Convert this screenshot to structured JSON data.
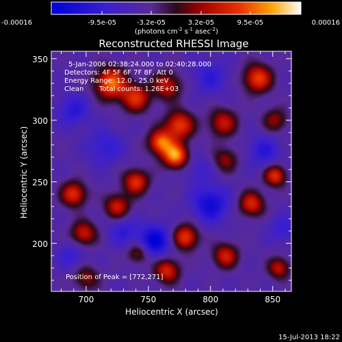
{
  "chart_data": {
    "type": "heatmap",
    "title": "Reconstructed RHESSI Image",
    "xlabel": "Heliocentric X (arcsec)",
    "ylabel": "Heliocentric Y (arcsec)",
    "xlim": [
      672,
      865
    ],
    "ylim": [
      161,
      356
    ],
    "xticks": [
      "700",
      "750",
      "800",
      "850"
    ],
    "xtick_values": [
      700,
      750,
      800,
      850
    ],
    "yticks": [
      "200",
      "250",
      "300",
      "350"
    ],
    "ytick_values": [
      200,
      250,
      300,
      350
    ],
    "colorbar": {
      "min": -0.00016,
      "max": 0.00016,
      "tick_labels": [
        "-0.00016",
        "-9.5e-05",
        "-3.2e-05",
        "3.2e-05",
        "9.5e-05",
        "0.00016"
      ],
      "tick_values": [
        -0.00016,
        -9.5e-05,
        -3.2e-05,
        3.2e-05,
        9.5e-05,
        0.00016
      ],
      "unit_prefix": "(photons cm",
      "unit_sup1": "-2",
      "unit_mid": " s",
      "unit_sup2": "-1",
      "unit_mid2": " asec",
      "unit_sup3": "-2",
      "unit_suffix": ")"
    },
    "annotations": {
      "time_range": "5-Jan-2006 02:38:24.000 to 02:40:28.000",
      "detectors": "Detectors: 4F 5F 6F 7F 8F, Att 0",
      "energy": "Energy Range: 12.0 - 25.0 keV",
      "clean": "Clean",
      "total_counts": "Total counts: 1.26E+03",
      "peak": "Position of Peak = [772,271]"
    },
    "footer_date": "15-Jul-2013 18:22",
    "peak_position": [
      772,
      271
    ],
    "sources": [
      {
        "x": 720,
        "y": 330,
        "a": 0.9,
        "s": 9
      },
      {
        "x": 740,
        "y": 318,
        "a": 0.7,
        "s": 8
      },
      {
        "x": 765,
        "y": 328,
        "a": 0.6,
        "s": 8
      },
      {
        "x": 775,
        "y": 296,
        "a": 0.8,
        "s": 8
      },
      {
        "x": 760,
        "y": 282,
        "a": 0.9,
        "s": 7
      },
      {
        "x": 772,
        "y": 271,
        "a": 1.0,
        "s": 7
      },
      {
        "x": 810,
        "y": 298,
        "a": 0.6,
        "s": 8
      },
      {
        "x": 838,
        "y": 334,
        "a": 0.8,
        "s": 8
      },
      {
        "x": 852,
        "y": 300,
        "a": 0.45,
        "s": 7
      },
      {
        "x": 812,
        "y": 268,
        "a": 0.45,
        "s": 7
      },
      {
        "x": 740,
        "y": 250,
        "a": 0.75,
        "s": 7
      },
      {
        "x": 690,
        "y": 240,
        "a": 0.75,
        "s": 7
      },
      {
        "x": 725,
        "y": 230,
        "a": 0.65,
        "s": 7
      },
      {
        "x": 698,
        "y": 208,
        "a": 0.65,
        "s": 7
      },
      {
        "x": 780,
        "y": 205,
        "a": 0.8,
        "s": 7
      },
      {
        "x": 833,
        "y": 232,
        "a": 0.7,
        "s": 7
      },
      {
        "x": 852,
        "y": 255,
        "a": 0.75,
        "s": 6
      },
      {
        "x": 812,
        "y": 190,
        "a": 0.65,
        "s": 7
      },
      {
        "x": 765,
        "y": 178,
        "a": 0.7,
        "s": 7
      },
      {
        "x": 742,
        "y": 192,
        "a": 0.5,
        "s": 6
      },
      {
        "x": 855,
        "y": 180,
        "a": 0.6,
        "s": 6
      },
      {
        "x": 700,
        "y": 172,
        "a": 0.45,
        "s": 7
      },
      {
        "x": 755,
        "y": 202,
        "a": -0.7,
        "s": 9
      },
      {
        "x": 800,
        "y": 232,
        "a": -0.6,
        "s": 10
      },
      {
        "x": 690,
        "y": 308,
        "a": -0.4,
        "s": 9
      },
      {
        "x": 715,
        "y": 278,
        "a": -0.35,
        "s": 10
      },
      {
        "x": 843,
        "y": 275,
        "a": -0.4,
        "s": 9
      },
      {
        "x": 800,
        "y": 335,
        "a": -0.35,
        "s": 10
      },
      {
        "x": 730,
        "y": 210,
        "a": -0.35,
        "s": 8
      },
      {
        "x": 688,
        "y": 190,
        "a": -0.3,
        "s": 8
      },
      {
        "x": 858,
        "y": 212,
        "a": -0.3,
        "s": 8
      },
      {
        "x": 790,
        "y": 260,
        "a": -0.25,
        "s": 8
      }
    ]
  }
}
